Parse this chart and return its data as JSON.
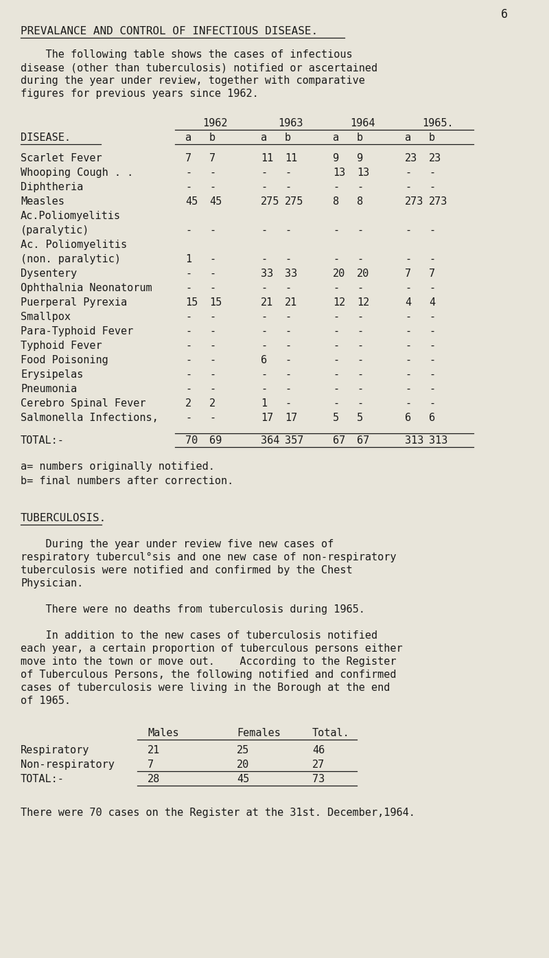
{
  "bg_color": "#e8e5da",
  "text_color": "#1a1a1a",
  "page_number": "6",
  "heading": "PREVALANCE AND CONTROL OF INFECTIOUS DISEASE.",
  "intro": [
    "    The following table shows the cases of infectious",
    "disease (other than tuberculosis) notified or ascertained",
    "during the year under review, together with comparative",
    "figures for previous years since 1962."
  ],
  "col_headers_years": [
    "1962",
    "1963",
    "1964",
    "1965."
  ],
  "col_label": "DISEASE.",
  "data_rows": [
    {
      "label": "Scarlet Fever",
      "vals": [
        "7",
        "7",
        "11",
        "11",
        "9",
        "9",
        "23",
        "23"
      ]
    },
    {
      "label": "Whooping Cough . .",
      "vals": [
        "-",
        "-",
        "-",
        "-",
        "13",
        "13",
        "-",
        "-"
      ]
    },
    {
      "label": "Diphtheria",
      "vals": [
        "-",
        "-",
        "-",
        "-",
        "-",
        "-",
        "-",
        "-"
      ]
    },
    {
      "label": "Measles",
      "vals": [
        "45",
        "45",
        "275",
        "275",
        "8",
        "8",
        "273",
        "273"
      ]
    },
    {
      "label": "Ac.Poliomyelitis",
      "vals": null
    },
    {
      "label": "(paralytic)",
      "vals": [
        "-",
        "-",
        "-",
        "-",
        "-",
        "-",
        "-",
        "-"
      ]
    },
    {
      "label": "Ac. Poliomyelitis",
      "vals": null
    },
    {
      "label": "(non. paralytic)",
      "vals": [
        "1",
        "-",
        "-",
        "-",
        "-",
        "-",
        "-",
        "-"
      ]
    },
    {
      "label": "Dysentery",
      "vals": [
        "-",
        "-",
        "33",
        "33",
        "20",
        "20",
        "7",
        "7"
      ]
    },
    {
      "label": "Ophthalnia Neonatorum",
      "vals": [
        "-",
        "-",
        "-",
        "-",
        "-",
        "-",
        "-",
        "-"
      ]
    },
    {
      "label": "Puerperal Pyrexia",
      "vals": [
        "15",
        "15",
        "21",
        "21",
        "12",
        "12",
        "4",
        "4"
      ]
    },
    {
      "label": "Smallpox",
      "vals": [
        "-",
        "-",
        "-",
        "-",
        "-",
        "-",
        "-",
        "-"
      ]
    },
    {
      "label": "Para-Typhoid Fever",
      "vals": [
        "-",
        "-",
        "-",
        "-",
        "-",
        "-",
        "-",
        "-"
      ]
    },
    {
      "label": "Typhoid Fever",
      "vals": [
        "-",
        "-",
        "-",
        "-",
        "-",
        "-",
        "-",
        "-"
      ]
    },
    {
      "label": "Food Poisoning",
      "vals": [
        "-",
        "-",
        "6",
        "-",
        "-",
        "-",
        "-",
        "-"
      ]
    },
    {
      "label": "Erysipelas",
      "vals": [
        "-",
        "-",
        "-",
        "-",
        "-",
        "-",
        "-",
        "-"
      ]
    },
    {
      "label": "Pneumonia",
      "vals": [
        "-",
        "-",
        "-",
        "-",
        "-",
        "-",
        "-",
        "-"
      ]
    },
    {
      "label": "Cerebro Spinal Fever",
      "vals": [
        "2",
        "2",
        "1",
        "-",
        "-",
        "-",
        "-",
        "-"
      ]
    },
    {
      "label": "Salmonella Infections,",
      "vals": [
        "-",
        "-",
        "17",
        "17",
        "5",
        "5",
        "6",
        "6"
      ]
    }
  ],
  "total_row": [
    "70",
    "69",
    "364",
    "357",
    "67",
    "67",
    "313",
    "313"
  ],
  "footnote_a": "a= numbers originally notified.",
  "footnote_b": "b= final numbers after correction.",
  "tb_heading": "TUBERCULOSIS.",
  "tb_para1": [
    "    During the year under review five new cases of",
    "respiratory tubercul°sis and one new case of non-respiratory",
    "tuberculosis were notified and confirmed by the Chest",
    "Physician."
  ],
  "tb_para2": "    There were no deaths from tuberculosis during 1965.",
  "tb_para3": [
    "    In addition to the new cases of tuberculosis notified",
    "each year, a certain proportion of tuberculous persons either",
    "move into the town or move out.    According to the Register",
    "of Tuberculous Persons, the following notified and confirmed",
    "cases of tuberculosis were living in the Borough at the end",
    "of 1965."
  ],
  "tb_table_headers": [
    "Males",
    "Females",
    "Total."
  ],
  "tb_table_rows": [
    [
      "Respiratory",
      "21",
      "25",
      "46"
    ],
    [
      "Non-respiratory",
      "7",
      "20",
      "27"
    ],
    [
      "TOTAL:-",
      "28",
      "45",
      "73"
    ]
  ],
  "final_note": "There were 70 cases on the Register at the 31st. December,1964."
}
